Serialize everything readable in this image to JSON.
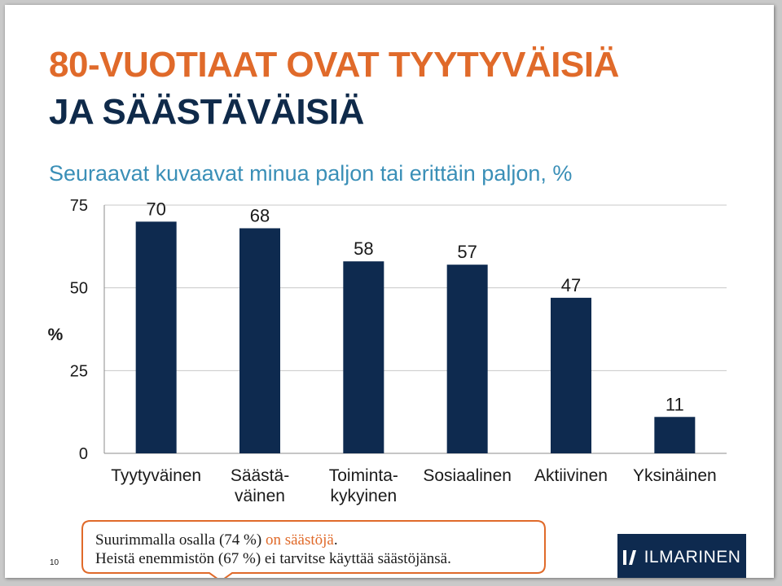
{
  "colors": {
    "title_accent": "#E06A2A",
    "title_dark": "#0F2A4A",
    "subtitle": "#3A8FB7",
    "bar": "#0E2A4F",
    "callout_border": "#E06A2A",
    "logo_bg": "#0E2A4F"
  },
  "slide": {
    "title_line1": "80-VUOTIAAT OVAT TYYTYVÄISIÄ",
    "title_line2": "JA SÄÄSTÄVÄISIÄ",
    "page_number": "10"
  },
  "callout": {
    "line1_prefix": "Suurimmalla osalla (74 %) ",
    "line1_accent": "on säästöjä",
    "line1_suffix": ".",
    "line2": "Heistä enemmistön (67 %) ei tarvitse käyttää säästöjänsä."
  },
  "logo": {
    "text": "ILMARINEN",
    "icon": "ilmarinen-logo-icon"
  },
  "chart_data": {
    "type": "bar",
    "title": "",
    "subtitle": "Seuraavat kuvaavat minua paljon tai erittäin paljon, %",
    "xlabel": "",
    "ylabel": "%",
    "categories": [
      [
        "Tyytyväinen"
      ],
      [
        "Säästä-",
        "väinen"
      ],
      [
        "Toiminta-",
        "kykyinen"
      ],
      [
        "Sosiaalinen"
      ],
      [
        "Aktiivinen"
      ],
      [
        "Yksinäinen"
      ]
    ],
    "values": [
      70,
      68,
      58,
      57,
      47,
      11
    ],
    "data_labels": [
      "70",
      "68",
      "58",
      "57",
      "47",
      "11"
    ],
    "ylim": [
      0,
      75
    ],
    "yticks": [
      0,
      25,
      50,
      75
    ],
    "grid": true,
    "legend": "none"
  }
}
